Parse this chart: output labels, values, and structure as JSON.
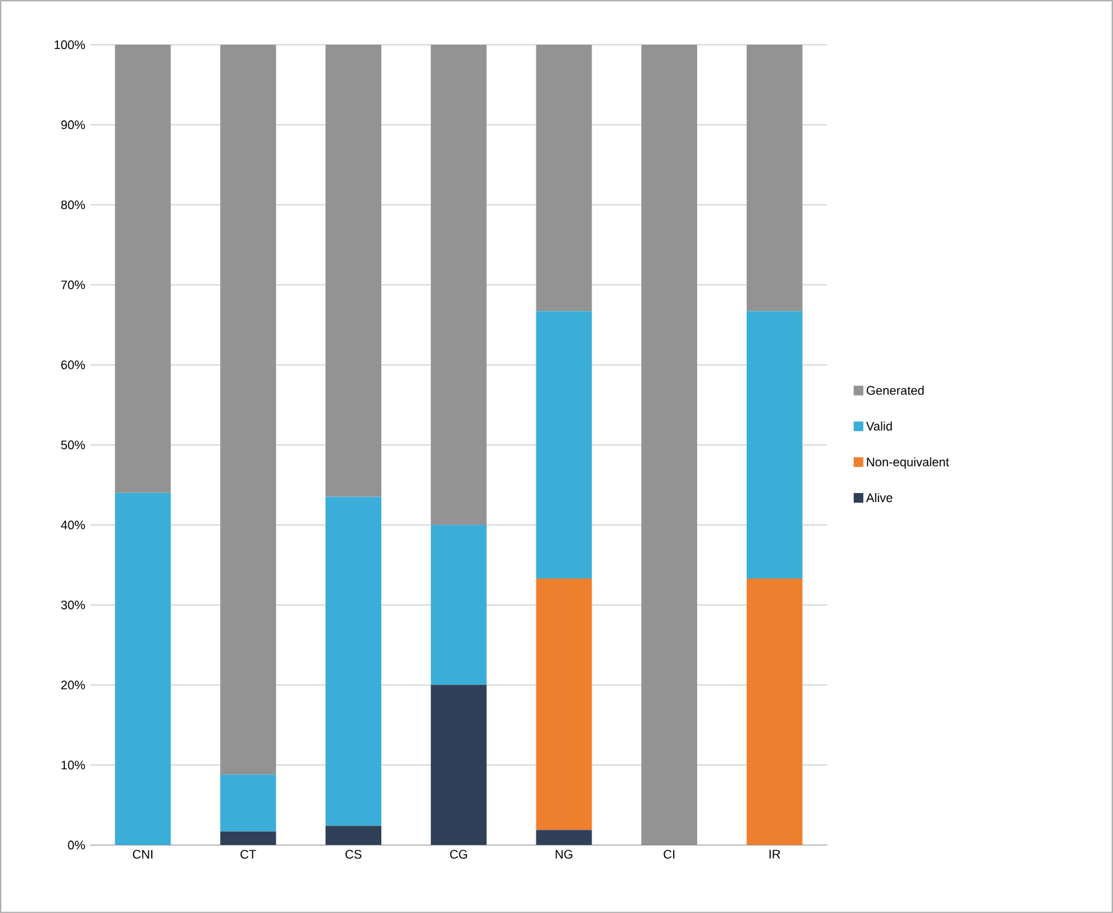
{
  "chart_data": {
    "type": "bar",
    "stacked": true,
    "categories": [
      "CNI",
      "CT",
      "CS",
      "CG",
      "NG",
      "CI",
      "IR"
    ],
    "series": [
      {
        "name": "Alive",
        "color": "#2f4058",
        "values": [
          0,
          1.7,
          2.4,
          20,
          1.9,
          0,
          0
        ]
      },
      {
        "name": "Non-equivalent",
        "color": "#ee7f2d",
        "values": [
          0,
          0,
          0,
          0,
          31.4,
          0,
          33.3
        ]
      },
      {
        "name": "Valid",
        "color": "#3aaed8",
        "values": [
          44,
          7.1,
          41.1,
          20,
          33.4,
          0,
          33.4
        ]
      },
      {
        "name": "Generated",
        "color": "#939393",
        "values": [
          56,
          91.2,
          56.5,
          60,
          33.3,
          100,
          33.3
        ]
      }
    ],
    "ylim": [
      0,
      100
    ],
    "yticks": [
      {
        "value": 0,
        "label": "0%"
      },
      {
        "value": 10,
        "label": "10%"
      },
      {
        "value": 20,
        "label": "20%"
      },
      {
        "value": 30,
        "label": "30%"
      },
      {
        "value": 40,
        "label": "40%"
      },
      {
        "value": 50,
        "label": "50%"
      },
      {
        "value": 60,
        "label": "60%"
      },
      {
        "value": 70,
        "label": "70%"
      },
      {
        "value": 80,
        "label": "80%"
      },
      {
        "value": 90,
        "label": "90%"
      },
      {
        "value": 100,
        "label": "100%"
      }
    ],
    "grid": "y",
    "legend": "right"
  }
}
